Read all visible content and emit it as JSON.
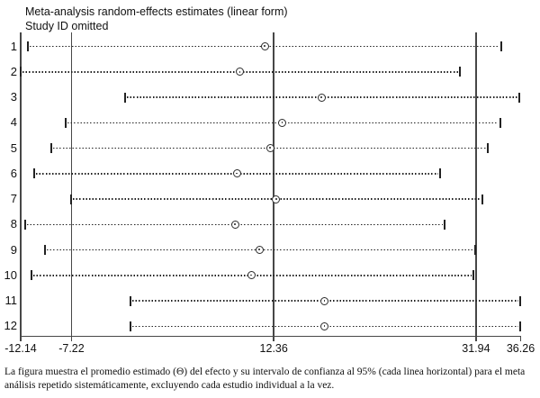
{
  "header": {
    "title": "Meta-analysis random-effects estimates (linear form)",
    "subtitle": "Study ID omitted"
  },
  "caption": "La figura muestra el promedio estimado (Θ) del efecto y su intervalo de confianza al 95% (cada linea horizontal) para el meta análisis repetido sistemáticamente, excluyendo cada estudio individual a la vez.",
  "colors": {
    "ink": "#222222",
    "axis": "#474747"
  },
  "chart_data": {
    "type": "forest-sensitivity",
    "title": "Meta-analysis random-effects estimates (linear form)",
    "subtitle": "Study ID omitted",
    "xlabel": "",
    "ylabel": "Study ID omitted",
    "xlim": [
      -12.14,
      36.26
    ],
    "x_ticks": [
      -12.14,
      -7.22,
      12.36,
      31.94,
      36.26
    ],
    "x_tick_labels": [
      "-12.14",
      "-7.22",
      "12.36",
      "31.94",
      "36.26"
    ],
    "reference_lines": [
      -7.22,
      12.36,
      31.94
    ],
    "overall_estimate": 12.36,
    "overall_ci": [
      -7.22,
      31.94
    ],
    "grid": false,
    "legend": "none",
    "studies": [
      {
        "label": "1",
        "estimate": 11.5,
        "ci_low": -11.4,
        "ci_high": 34.4
      },
      {
        "label": "2",
        "estimate": 9.1,
        "ci_low": -12.1,
        "ci_high": 30.4
      },
      {
        "label": "3",
        "estimate": 17.0,
        "ci_low": -2.0,
        "ci_high": 36.1
      },
      {
        "label": "4",
        "estimate": 13.2,
        "ci_low": -7.8,
        "ci_high": 34.3
      },
      {
        "label": "5",
        "estimate": 12.0,
        "ci_low": -9.2,
        "ci_high": 33.1
      },
      {
        "label": "6",
        "estimate": 8.8,
        "ci_low": -10.8,
        "ci_high": 28.5
      },
      {
        "label": "7",
        "estimate": 12.6,
        "ci_low": -7.3,
        "ci_high": 32.6
      },
      {
        "label": "8",
        "estimate": 8.6,
        "ci_low": -11.7,
        "ci_high": 28.9
      },
      {
        "label": "9",
        "estimate": 11.0,
        "ci_low": -9.8,
        "ci_high": 31.9
      },
      {
        "label": "10",
        "estimate": 10.2,
        "ci_low": -11.1,
        "ci_high": 31.7
      },
      {
        "label": "11",
        "estimate": 17.3,
        "ci_low": -1.5,
        "ci_high": 36.2
      },
      {
        "label": "12",
        "estimate": 17.3,
        "ci_low": -1.5,
        "ci_high": 36.2
      }
    ]
  }
}
